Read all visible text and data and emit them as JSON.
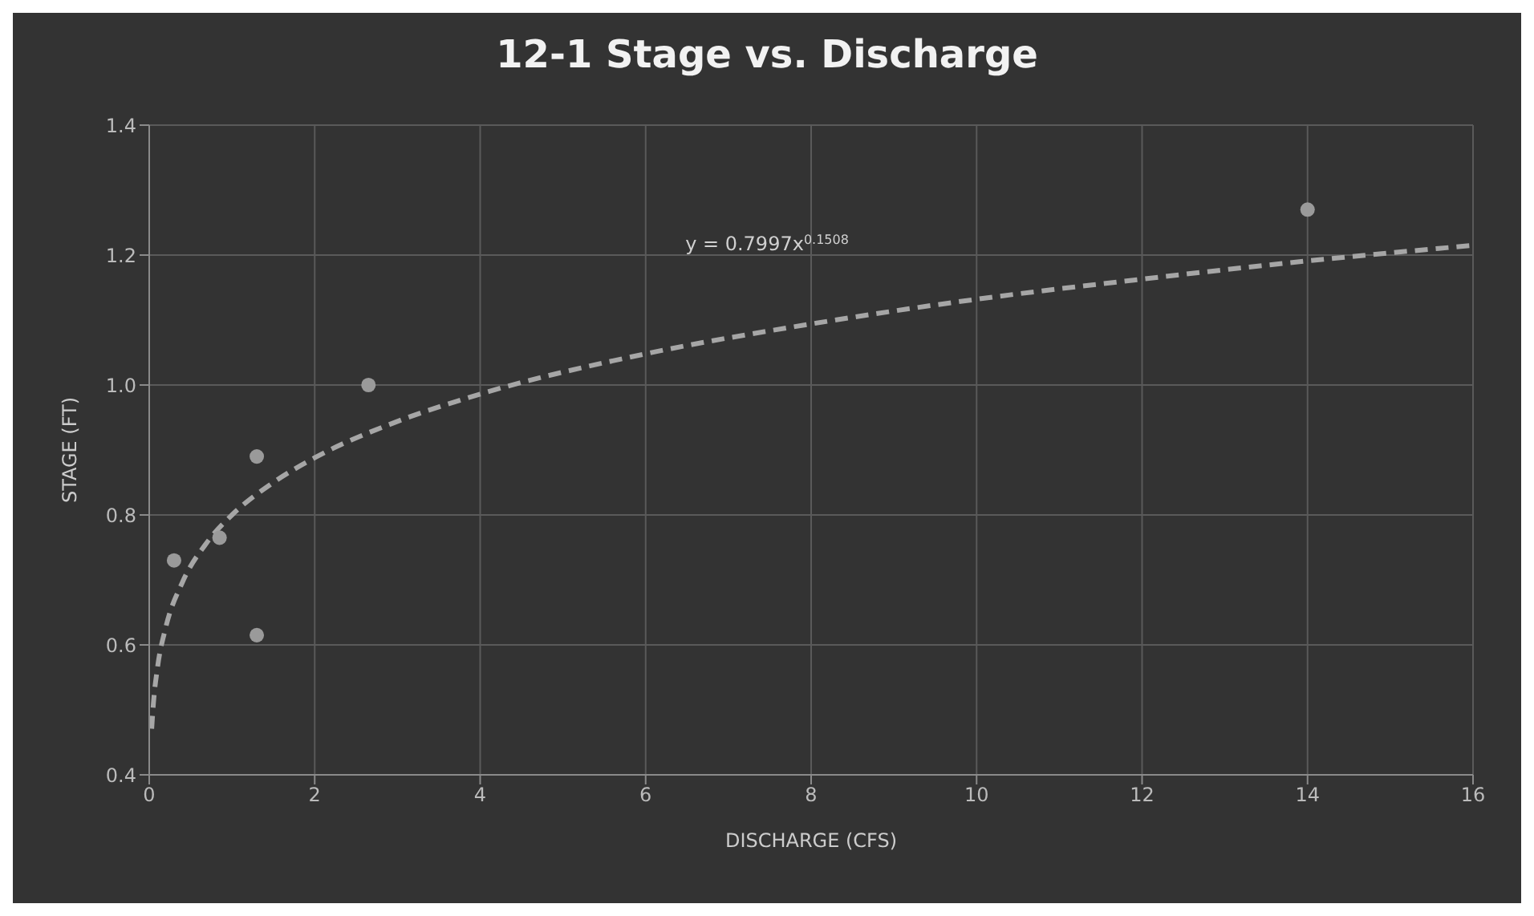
{
  "chart_data": {
    "type": "scatter",
    "title": "12-1 Stage vs. Discharge",
    "xlabel": "DISCHARGE (CFS)",
    "ylabel": "STAGE (FT)",
    "annotations": [
      "y = 0.7997x$^{0.1508}$"
    ],
    "xlim": [
      0,
      16
    ],
    "xticks": [
      0,
      2,
      4,
      6,
      8,
      10,
      12,
      14,
      16
    ],
    "ylim": [
      0.4,
      1.4
    ],
    "yticks": [
      {
        "value": 0.4,
        "label": "0.4"
      },
      {
        "value": 0.6,
        "label": "0.6"
      },
      {
        "value": 0.8,
        "label": "0.8"
      },
      {
        "value": 1.0,
        "label": "1.0"
      },
      {
        "value": 1.2,
        "label": "1.2"
      },
      {
        "value": 1.4,
        "label": "1.4"
      }
    ],
    "grid": true,
    "series": [
      {
        "color": "#9a9a9a",
        "marker": "circle",
        "x": [
          0.3,
          0.85,
          1.3,
          1.3,
          2.65,
          14.0
        ],
        "values": [
          0.73,
          0.765,
          0.89,
          0.615,
          1.0,
          1.27
        ]
      },
      {
        "type": "line",
        "color": "#a6a6a6",
        "line_style": "dashed",
        "marker": "none",
        "x": [
          0.03,
          0.05,
          0.1,
          0.2,
          0.4,
          0.7,
          1,
          1.5,
          2,
          3,
          4,
          6,
          8,
          10,
          12,
          14,
          16
        ],
        "values": [
          0.471,
          0.509,
          0.565,
          0.627,
          0.696,
          0.758,
          0.8,
          0.85,
          0.888,
          0.944,
          0.986,
          1.048,
          1.094,
          1.132,
          1.163,
          1.191,
          1.215
        ]
      }
    ]
  }
}
